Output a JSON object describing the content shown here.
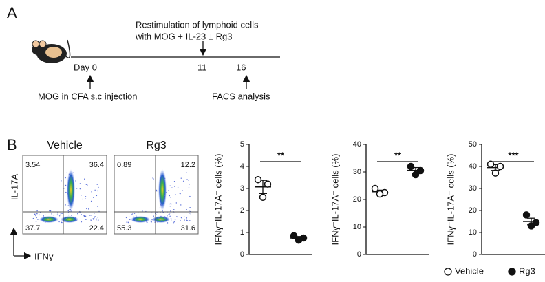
{
  "panel_a": {
    "label": "A",
    "restim": [
      "Restimulation of lymphoid cells",
      "with MOG + IL-23 ± Rg3"
    ],
    "days": [
      "Day 0",
      "11",
      "16"
    ],
    "events": [
      "MOG in CFA s.c injection",
      "FACS analysis"
    ]
  },
  "panel_b": {
    "label": "B",
    "y_label": "IL-17A",
    "x_label": "IFNγ",
    "flow": [
      {
        "title": "Vehicle",
        "quadrants": {
          "ul": 3.54,
          "ur": 36.4,
          "ll": 37.7,
          "lr": 22.4
        }
      },
      {
        "title": "Rg3",
        "quadrants": {
          "ul": 0.89,
          "ur": 12.2,
          "ll": 55.3,
          "lr": 31.6
        }
      }
    ]
  },
  "legend": [
    {
      "name": "Vehicle",
      "marker": "open"
    },
    {
      "name": "Rg3",
      "marker": "filled"
    }
  ],
  "chart_data": [
    {
      "type": "scatter",
      "ylabel": "IFNγ⁻IL-17A⁺ cells (%)",
      "ylim": [
        0,
        5
      ],
      "yticks": [
        0,
        1,
        2,
        3,
        4,
        5
      ],
      "significance": "**",
      "series": [
        {
          "marker": "open",
          "values": [
            3.4,
            3.2,
            2.6
          ],
          "mean": 3.07,
          "sem": 0.3
        },
        {
          "marker": "filled",
          "values": [
            0.85,
            0.75,
            0.65
          ],
          "mean": 0.75,
          "sem": 0.07
        }
      ]
    },
    {
      "type": "scatter",
      "ylabel": "IFNγ⁺IL-17A⁻ cells (%)",
      "ylim": [
        0,
        40
      ],
      "yticks": [
        0,
        10,
        20,
        30,
        40
      ],
      "significance": "**",
      "series": [
        {
          "marker": "open",
          "values": [
            24,
            22.5,
            22
          ],
          "mean": 22.8,
          "sem": 0.6
        },
        {
          "marker": "filled",
          "values": [
            32,
            30.5,
            29
          ],
          "mean": 30.6,
          "sem": 1
        }
      ]
    },
    {
      "type": "scatter",
      "ylabel": "IFNγ⁺IL-17A⁺ cells (%)",
      "ylim": [
        0,
        50
      ],
      "yticks": [
        0,
        10,
        20,
        30,
        40,
        50
      ],
      "significance": "***",
      "series": [
        {
          "marker": "open",
          "values": [
            41,
            40,
            37
          ],
          "mean": 39.5,
          "sem": 1.3
        },
        {
          "marker": "filled",
          "values": [
            18,
            14.5,
            13
          ],
          "mean": 15,
          "sem": 1.5
        }
      ]
    }
  ]
}
